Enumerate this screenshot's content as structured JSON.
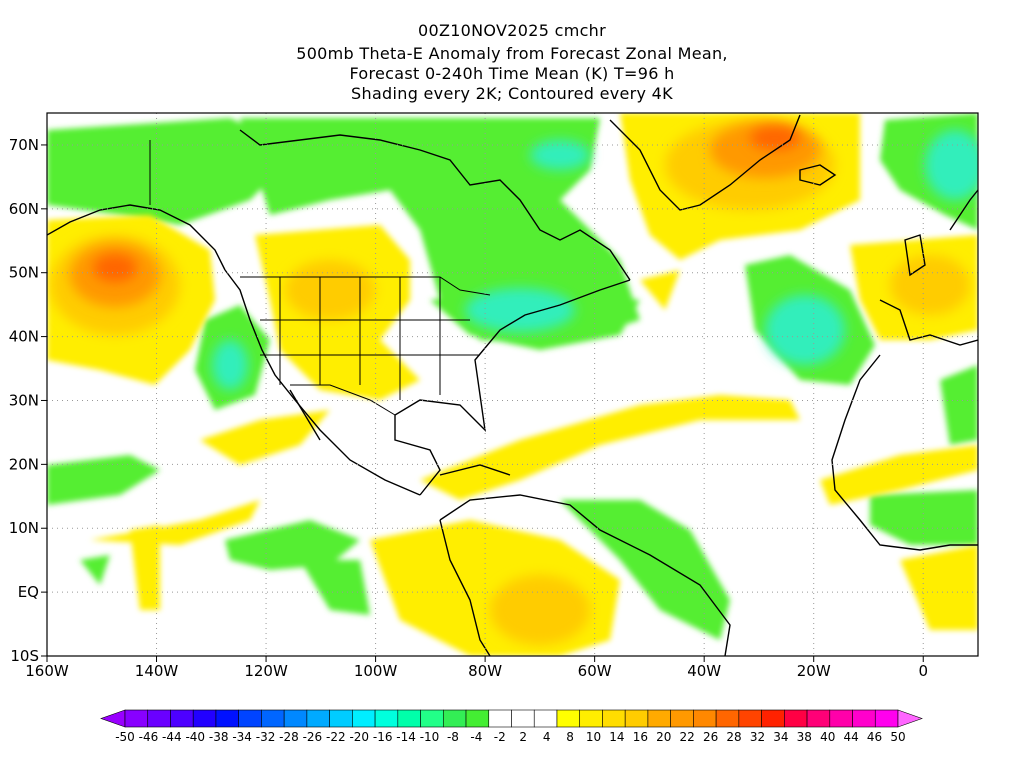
{
  "title": {
    "line1": "00Z10NOV2025 cmchr",
    "line2": "500mb Theta-E Anomaly from Forecast Zonal Mean,",
    "line3": "Forecast 0-240h Time Mean (K) T=96 h",
    "line4": "Shading every 2K; Contoured every 4K"
  },
  "map": {
    "lon_range": [
      -160,
      10
    ],
    "lat_range": [
      -10,
      75
    ],
    "lon_ticks": [
      "160W",
      "140W",
      "120W",
      "100W",
      "80W",
      "60W",
      "40W",
      "20W",
      "0"
    ],
    "lat_ticks": [
      "10S",
      "EQ",
      "10N",
      "20N",
      "30N",
      "40N",
      "50N",
      "60N",
      "70N"
    ],
    "gridlines": true,
    "colors": {
      "green": "#55ee33",
      "teal": "#33eebb",
      "yellow": "#ffee00",
      "gold": "#ffcc00",
      "orange": "#ff9900",
      "dark_orange": "#ff6600"
    }
  },
  "colorbar": {
    "labels": [
      "-50",
      "-46",
      "-44",
      "-40",
      "-38",
      "-34",
      "-32",
      "-28",
      "-26",
      "-22",
      "-20",
      "-16",
      "-14",
      "-10",
      "-8",
      "-4",
      "-2",
      "2",
      "4",
      "8",
      "10",
      "14",
      "16",
      "20",
      "22",
      "26",
      "28",
      "32",
      "34",
      "38",
      "40",
      "44",
      "46",
      "50"
    ],
    "colors": [
      "#8800ff",
      "#6a00ff",
      "#4d00ff",
      "#2200ff",
      "#0011ff",
      "#0044ff",
      "#0066ff",
      "#0088ff",
      "#00aaff",
      "#00ccff",
      "#00eeff",
      "#00ffdd",
      "#00ffaa",
      "#22ff88",
      "#33ee55",
      "#44ee33",
      "#ffffff",
      "#ffffff",
      "#ffffff",
      "#ffff00",
      "#ffee00",
      "#ffdd00",
      "#ffcc00",
      "#ffaa00",
      "#ff9900",
      "#ff8800",
      "#ff6600",
      "#ff4400",
      "#ff2200",
      "#ff0044",
      "#ff0077",
      "#ff00aa",
      "#ff00cc",
      "#ff00ee"
    ]
  }
}
